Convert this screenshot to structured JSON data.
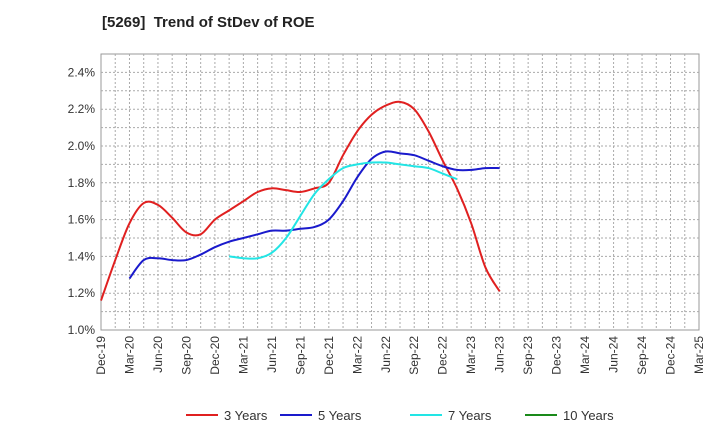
{
  "chart_data": {
    "type": "line",
    "title": "[5269]  Trend of StDev of ROE",
    "xlabel": "",
    "ylabel": "",
    "ylim": [
      1.0,
      2.5
    ],
    "y_ticks": [
      "1.0%",
      "1.2%",
      "1.4%",
      "1.6%",
      "1.8%",
      "2.0%",
      "2.2%",
      "2.4%"
    ],
    "y_tick_values": [
      1.0,
      1.2,
      1.4,
      1.6,
      1.8,
      2.0,
      2.2,
      2.4
    ],
    "x_ticks": [
      "Dec-19",
      "Mar-20",
      "Jun-20",
      "Sep-20",
      "Dec-20",
      "Mar-21",
      "Jun-21",
      "Sep-21",
      "Dec-21",
      "Mar-22",
      "Jun-22",
      "Sep-22",
      "Dec-22",
      "Mar-23",
      "Jun-23",
      "Sep-23",
      "Dec-23",
      "Mar-24",
      "Jun-24",
      "Sep-24",
      "Dec-24",
      "Mar-25"
    ],
    "grid": true,
    "legend_position": "bottom",
    "series": [
      {
        "name": "3 Years",
        "color": "#e02020",
        "values": [
          [
            0,
            1.16
          ],
          [
            1,
            1.38
          ],
          [
            2,
            1.58
          ],
          [
            3,
            1.69
          ],
          [
            4,
            1.68
          ],
          [
            5,
            1.61
          ],
          [
            6,
            1.53
          ],
          [
            7,
            1.52
          ],
          [
            8,
            1.6
          ],
          [
            9,
            1.65
          ],
          [
            10,
            1.7
          ],
          [
            11,
            1.75
          ],
          [
            12,
            1.77
          ],
          [
            13,
            1.76
          ],
          [
            14,
            1.75
          ],
          [
            15,
            1.77
          ],
          [
            16,
            1.8
          ],
          [
            17,
            1.95
          ],
          [
            18,
            2.08
          ],
          [
            19,
            2.17
          ],
          [
            20,
            2.22
          ],
          [
            21,
            2.24
          ],
          [
            22,
            2.2
          ],
          [
            23,
            2.08
          ],
          [
            24,
            1.92
          ],
          [
            25,
            1.77
          ],
          [
            26,
            1.58
          ],
          [
            27,
            1.34
          ],
          [
            28,
            1.21
          ]
        ]
      },
      {
        "name": "5 Years",
        "color": "#1a1acc",
        "values": [
          [
            2,
            1.28
          ],
          [
            3,
            1.38
          ],
          [
            4,
            1.39
          ],
          [
            5,
            1.38
          ],
          [
            6,
            1.38
          ],
          [
            7,
            1.41
          ],
          [
            8,
            1.45
          ],
          [
            9,
            1.48
          ],
          [
            10,
            1.5
          ],
          [
            11,
            1.52
          ],
          [
            12,
            1.54
          ],
          [
            13,
            1.54
          ],
          [
            14,
            1.55
          ],
          [
            15,
            1.56
          ],
          [
            16,
            1.6
          ],
          [
            17,
            1.7
          ],
          [
            18,
            1.83
          ],
          [
            19,
            1.93
          ],
          [
            20,
            1.97
          ],
          [
            21,
            1.96
          ],
          [
            22,
            1.95
          ],
          [
            23,
            1.92
          ],
          [
            24,
            1.89
          ],
          [
            25,
            1.87
          ],
          [
            26,
            1.87
          ],
          [
            27,
            1.88
          ],
          [
            28,
            1.88
          ]
        ]
      },
      {
        "name": "7 Years",
        "color": "#22e5e5",
        "values": [
          [
            9,
            1.4
          ],
          [
            10,
            1.39
          ],
          [
            11,
            1.39
          ],
          [
            12,
            1.42
          ],
          [
            13,
            1.5
          ],
          [
            14,
            1.62
          ],
          [
            15,
            1.74
          ],
          [
            16,
            1.82
          ],
          [
            17,
            1.88
          ],
          [
            18,
            1.9
          ],
          [
            19,
            1.91
          ],
          [
            20,
            1.91
          ],
          [
            21,
            1.9
          ],
          [
            22,
            1.89
          ],
          [
            23,
            1.88
          ],
          [
            24,
            1.85
          ],
          [
            25,
            1.82
          ]
        ]
      },
      {
        "name": "10 Years",
        "color": "#1a8a1a",
        "values": []
      }
    ]
  }
}
